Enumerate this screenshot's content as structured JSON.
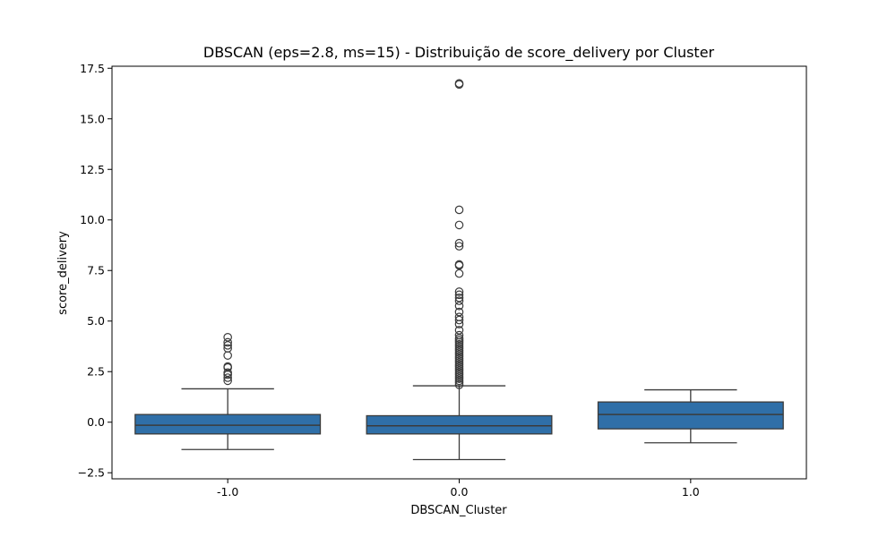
{
  "chart_data": {
    "type": "box",
    "title": "DBSCAN (eps=2.8, ms=15)  - Distribuição de score_delivery por Cluster",
    "xlabel": "DBSCAN_Cluster",
    "ylabel": "score_delivery",
    "ylim": [
      -2.8,
      17.6
    ],
    "yticks": [
      -2.5,
      0.0,
      2.5,
      5.0,
      7.5,
      10.0,
      12.5,
      15.0,
      17.5
    ],
    "ytick_labels": [
      "−2.5",
      "0.0",
      "2.5",
      "5.0",
      "7.5",
      "10.0",
      "12.5",
      "15.0",
      "17.5"
    ],
    "categories": [
      "-1.0",
      "0.0",
      "1.0"
    ],
    "grid": false,
    "box_color": "#2f6fa8",
    "line_color": "#3b3b3b",
    "boxes": [
      {
        "category": "-1.0",
        "whisker_low": -1.35,
        "q1": -0.58,
        "median": -0.15,
        "q3": 0.38,
        "whisker_high": 1.65,
        "outliers": [
          2.05,
          2.2,
          2.35,
          2.45,
          2.7,
          2.75,
          3.3,
          3.65,
          3.8,
          3.95,
          4.2
        ]
      },
      {
        "category": "0.0",
        "whisker_low": -1.85,
        "q1": -0.58,
        "median": -0.18,
        "q3": 0.32,
        "whisker_high": 1.8,
        "outliers": [
          1.85,
          1.95,
          2.05,
          2.15,
          2.25,
          2.35,
          2.45,
          2.55,
          2.65,
          2.75,
          2.85,
          2.95,
          3.05,
          3.15,
          3.25,
          3.35,
          3.45,
          3.55,
          3.65,
          3.75,
          3.85,
          3.95,
          4.05,
          4.15,
          4.3,
          4.55,
          4.85,
          5.05,
          5.2,
          5.45,
          5.75,
          6.0,
          6.15,
          6.3,
          6.45,
          7.35,
          7.75,
          7.8,
          8.7,
          8.85,
          9.75,
          10.5,
          16.7,
          16.75
        ]
      },
      {
        "category": "1.0",
        "whisker_low": -1.02,
        "q1": -0.33,
        "median": 0.38,
        "q3": 1.0,
        "whisker_high": 1.6,
        "outliers": []
      }
    ]
  }
}
